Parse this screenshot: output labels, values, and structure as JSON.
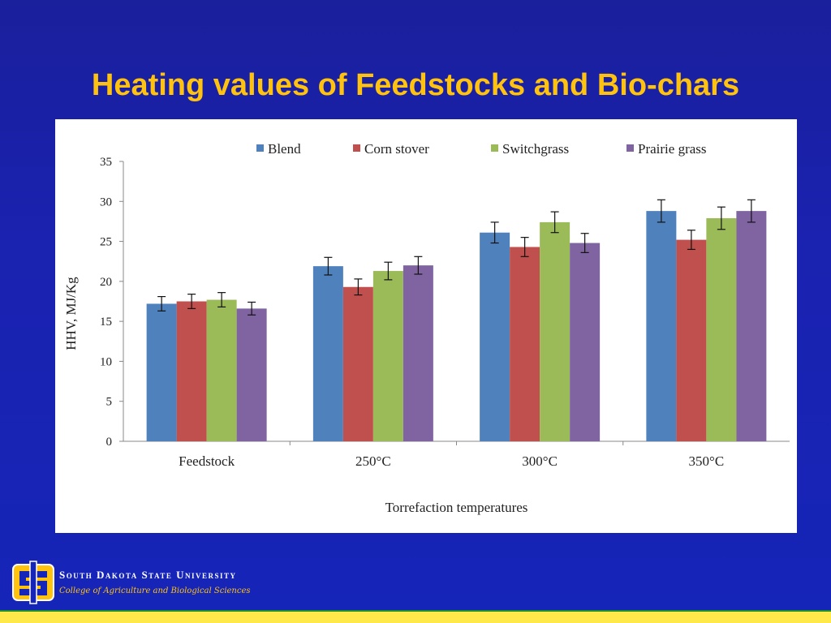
{
  "slide": {
    "title": "Heating values of Feedstocks and Bio-chars"
  },
  "footer": {
    "university": "South Dakota State University",
    "college": "College of Agriculture and Biological Sciences",
    "logo_text": "SDSU",
    "colors": {
      "gold": "#ffc20e",
      "blue": "#1525b8"
    }
  },
  "chart_data": {
    "type": "bar",
    "title": "",
    "xlabel": "Torrefaction temperatures",
    "ylabel": "HHV, MJ/Kg",
    "ylim": [
      0,
      35
    ],
    "yticks": [
      0,
      5,
      10,
      15,
      20,
      25,
      30,
      35
    ],
    "grid": false,
    "legend_position": "top",
    "categories": [
      "Feedstock",
      "250°C",
      "300°C",
      "350°C"
    ],
    "series": [
      {
        "name": "Blend",
        "color": "#4f81bd",
        "values": [
          17.2,
          21.9,
          26.1,
          28.8
        ],
        "errors": [
          0.9,
          1.1,
          1.3,
          1.4
        ]
      },
      {
        "name": "Corn stover",
        "color": "#c0504d",
        "values": [
          17.5,
          19.3,
          24.3,
          25.2
        ],
        "errors": [
          0.9,
          1.0,
          1.2,
          1.2
        ]
      },
      {
        "name": "Switchgrass",
        "color": "#9bbb59",
        "values": [
          17.7,
          21.3,
          27.4,
          27.9
        ],
        "errors": [
          0.9,
          1.1,
          1.3,
          1.4
        ]
      },
      {
        "name": "Prairie grass",
        "color": "#8064a2",
        "values": [
          16.6,
          22.0,
          24.8,
          28.8
        ],
        "errors": [
          0.8,
          1.1,
          1.2,
          1.4
        ]
      }
    ]
  }
}
